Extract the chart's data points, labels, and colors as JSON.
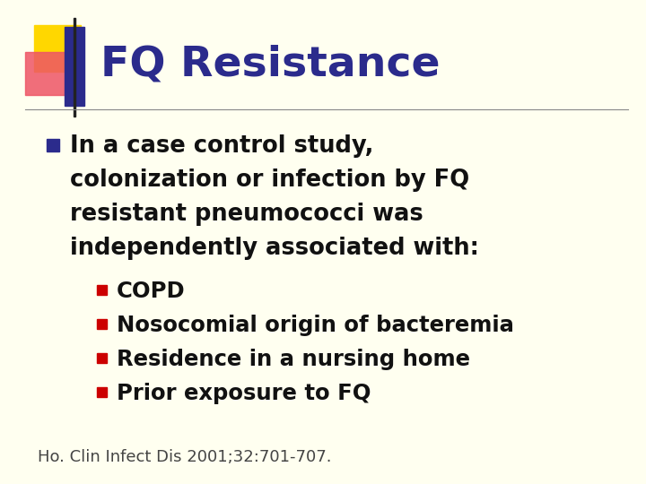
{
  "background_color": "#FFFFF0",
  "title": "FQ Resistance",
  "title_color": "#2B2B8C",
  "title_fontsize": 34,
  "separator_color": "#888888",
  "bullet1_marker_color": "#2B2B8C",
  "bullet1_lines": [
    "In a case control study,",
    "colonization or infection by FQ",
    "resistant pneumococci was",
    "independently associated with:"
  ],
  "bullet1_color": "#111111",
  "bullet1_fontsize": 18.5,
  "subbullets": [
    "COPD",
    "Nosocomial origin of bacteremia",
    "Residence in a nursing home",
    "Prior exposure to FQ"
  ],
  "subbullet_color": "#111111",
  "subbullet_marker_color": "#CC0000",
  "subbullet_fontsize": 17.5,
  "citation": "Ho. Clin Infect Dis 2001;32:701-707.",
  "citation_color": "#444444",
  "citation_fontsize": 13
}
